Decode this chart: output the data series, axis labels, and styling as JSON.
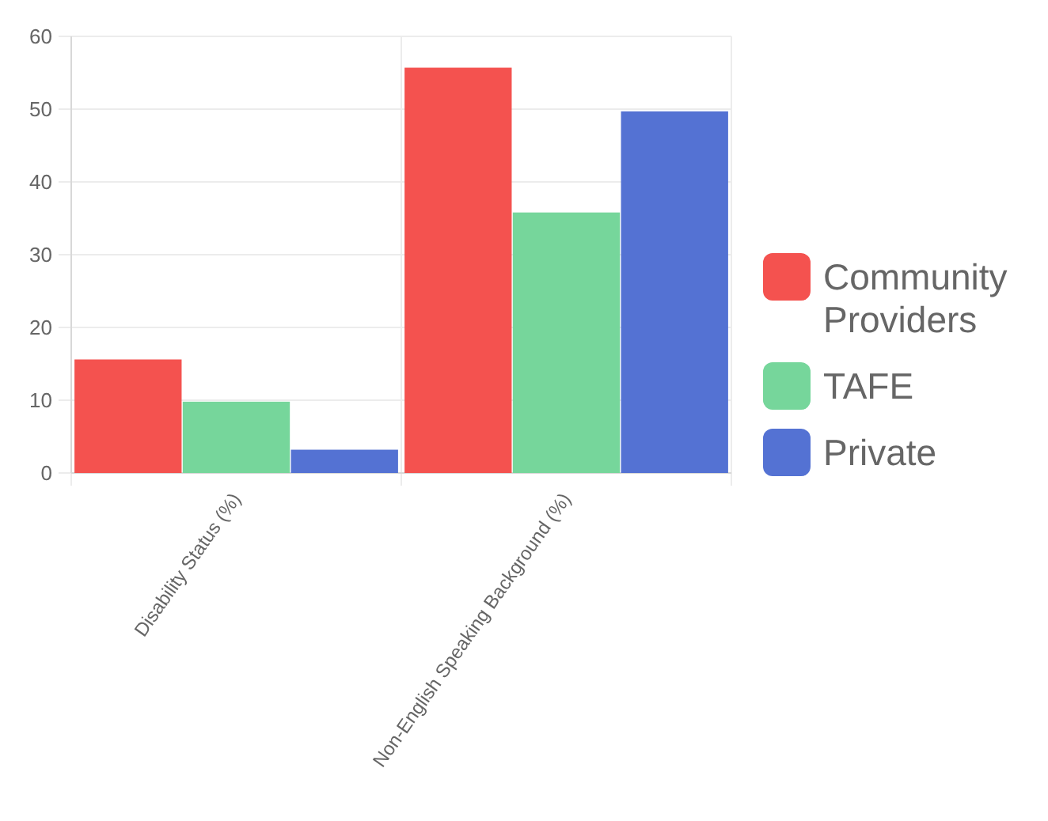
{
  "chart_data": {
    "type": "bar",
    "categories": [
      "Disability Status (%)",
      "Non-English Speaking Background (%)"
    ],
    "series": [
      {
        "name": "Community Providers",
        "color": "#f4524f",
        "values": [
          15.6,
          55.7
        ]
      },
      {
        "name": "TAFE",
        "color": "#76d69b",
        "values": [
          9.8,
          35.8
        ]
      },
      {
        "name": "Private",
        "color": "#5472d3",
        "values": [
          3.2,
          49.7
        ]
      }
    ],
    "ylim": [
      0,
      60
    ],
    "yticks": [
      0,
      10,
      20,
      30,
      40,
      50,
      60
    ],
    "grid": true,
    "legend": "right"
  }
}
